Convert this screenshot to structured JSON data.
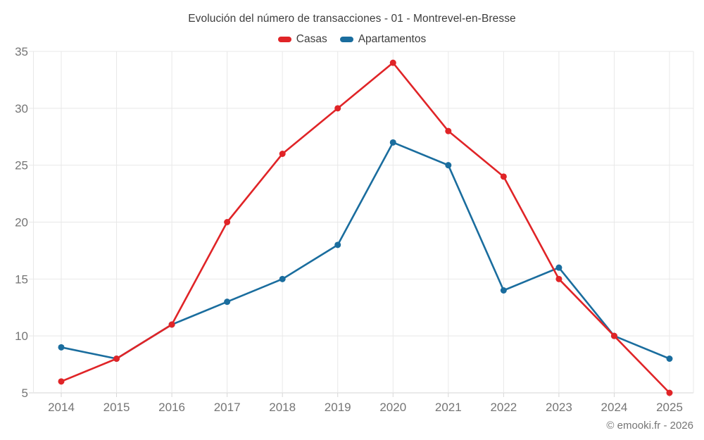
{
  "header": {
    "title": "Evolución del número de transacciones - 01 - Montrevel-en-Bresse"
  },
  "footer": {
    "credit": "© emooki.fr - 2026"
  },
  "chart_data": {
    "type": "line",
    "title": "Evolución del número de transacciones - 01 - Montrevel-en-Bresse",
    "categories": [
      "2014",
      "2015",
      "2016",
      "2017",
      "2018",
      "2019",
      "2020",
      "2021",
      "2022",
      "2023",
      "2024",
      "2025"
    ],
    "series": [
      {
        "name": "Casas",
        "color": "#e02427",
        "values": [
          6,
          8,
          11,
          20,
          26,
          30,
          34,
          28,
          24,
          15,
          10,
          5
        ]
      },
      {
        "name": "Apartamentos",
        "color": "#1a6d9e",
        "values": [
          9,
          8,
          11,
          13,
          15,
          18,
          27,
          25,
          14,
          16,
          10,
          8
        ]
      }
    ],
    "xlabel": "",
    "ylabel": "",
    "ylim": [
      5,
      35
    ],
    "ytick_step": 5,
    "yticks": [
      "5",
      "10",
      "15",
      "20",
      "25",
      "30",
      "35"
    ],
    "grid": true,
    "legend_position": "top",
    "marker": "circle",
    "colors": {
      "grid": "#e8e8e8",
      "axis": "#d6d6d6",
      "tick_label": "#757575",
      "title_text": "#3d3d3d"
    }
  }
}
